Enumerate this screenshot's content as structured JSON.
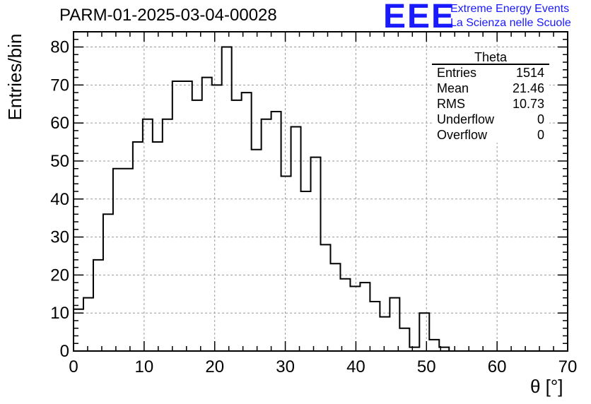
{
  "header": {
    "run_title": "PARM-01-2025-03-04-00028",
    "logo_mark": "EEE",
    "logo_line1": "Extreme Energy Events",
    "logo_line2": "La Scienza nelle Scuole",
    "accent_color": "#1a1aff"
  },
  "stats_box": {
    "title": "Theta",
    "rows": [
      {
        "label": "Entries",
        "value": "1514"
      },
      {
        "label": "Mean",
        "value": "21.46"
      },
      {
        "label": "RMS",
        "value": "10.73"
      },
      {
        "label": "Underflow",
        "value": "0"
      },
      {
        "label": "Overflow",
        "value": "0"
      }
    ]
  },
  "chart_data": {
    "type": "histogram",
    "title": "PARM-01-2025-03-04-00028",
    "xlabel": "θ [°]",
    "ylabel": "Entries/bin",
    "xlim": [
      0,
      70
    ],
    "ylim": [
      0,
      84
    ],
    "bin_width": 1.4,
    "bin_start": 0,
    "xticks": [
      0,
      10,
      20,
      30,
      40,
      50,
      60,
      70
    ],
    "yticks": [
      0,
      10,
      20,
      30,
      40,
      50,
      60,
      70,
      80
    ],
    "grid": true,
    "values": [
      11,
      14,
      24,
      36,
      48,
      48,
      55,
      61,
      55,
      61,
      71,
      71,
      66,
      72,
      70,
      80,
      66,
      68,
      53,
      61,
      63,
      46,
      59,
      42,
      51,
      28,
      23,
      19,
      17,
      18,
      13,
      9,
      14,
      6,
      1,
      10,
      3,
      1,
      0,
      0,
      0,
      0,
      0,
      0,
      0,
      0,
      0,
      0,
      0,
      0
    ]
  }
}
